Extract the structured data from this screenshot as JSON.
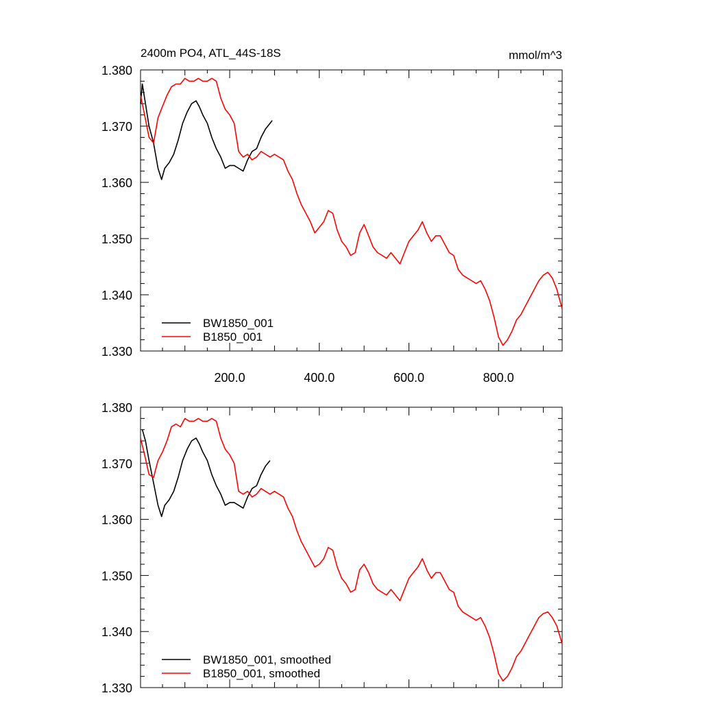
{
  "figure": {
    "title": "2400m PO4, ATL_44S-18S",
    "units": "mmol/m^3"
  },
  "chart_data": [
    {
      "type": "line",
      "title": "2400m PO4, ATL_44S-18S",
      "units_label": "mmol/m^3",
      "xlabel": "",
      "ylabel": "",
      "xlim": [
        1,
        942
      ],
      "ylim": [
        1.33,
        1.38
      ],
      "x_ticks": [
        200,
        400,
        600,
        800
      ],
      "x_tick_labels": [
        "200.0",
        "400.0",
        "600.0",
        "800.0"
      ],
      "y_ticks": [
        1.33,
        1.34,
        1.35,
        1.36,
        1.37,
        1.38
      ],
      "y_tick_labels": [
        "1.330",
        "1.340",
        "1.350",
        "1.360",
        "1.370",
        "1.380"
      ],
      "grid": false,
      "legend": "bottom-left",
      "series": [
        {
          "name": "BW1850_001",
          "color": "#000000",
          "x": [
            1,
            5,
            12,
            20,
            30,
            40,
            48,
            55,
            65,
            75,
            85,
            95,
            105,
            115,
            125,
            132,
            140,
            150,
            160,
            170,
            180,
            190,
            200,
            210,
            220,
            230,
            240,
            250,
            260,
            270,
            280,
            290,
            295
          ],
          "y": [
            1.374,
            1.3775,
            1.374,
            1.37,
            1.367,
            1.3625,
            1.3605,
            1.3625,
            1.3635,
            1.365,
            1.3675,
            1.3705,
            1.3725,
            1.374,
            1.3745,
            1.3735,
            1.372,
            1.3705,
            1.368,
            1.366,
            1.3645,
            1.3625,
            1.363,
            1.363,
            1.3625,
            1.362,
            1.364,
            1.3655,
            1.366,
            1.368,
            1.3695,
            1.3705,
            1.371
          ]
        },
        {
          "name": "B1850_001",
          "color": "#ff0000",
          "x": [
            1,
            10,
            20,
            30,
            40,
            50,
            60,
            70,
            80,
            90,
            100,
            110,
            120,
            130,
            140,
            150,
            160,
            170,
            180,
            190,
            200,
            210,
            220,
            230,
            240,
            250,
            260,
            270,
            280,
            290,
            300,
            310,
            320,
            330,
            340,
            350,
            360,
            370,
            380,
            390,
            400,
            410,
            420,
            430,
            440,
            450,
            460,
            470,
            480,
            490,
            500,
            510,
            520,
            530,
            540,
            550,
            560,
            570,
            580,
            590,
            600,
            610,
            620,
            630,
            640,
            650,
            660,
            670,
            680,
            690,
            700,
            710,
            720,
            730,
            740,
            750,
            760,
            770,
            780,
            790,
            800,
            810,
            820,
            830,
            840,
            850,
            860,
            870,
            880,
            890,
            900,
            910,
            920,
            930,
            942
          ],
          "y": [
            1.3755,
            1.372,
            1.368,
            1.367,
            1.3715,
            1.3735,
            1.3755,
            1.377,
            1.3775,
            1.3775,
            1.3785,
            1.378,
            1.378,
            1.3785,
            1.378,
            1.378,
            1.3785,
            1.378,
            1.375,
            1.373,
            1.372,
            1.3705,
            1.3655,
            1.3645,
            1.365,
            1.364,
            1.3645,
            1.3655,
            1.365,
            1.3645,
            1.365,
            1.3645,
            1.364,
            1.362,
            1.3605,
            1.358,
            1.356,
            1.3545,
            1.353,
            1.351,
            1.352,
            1.353,
            1.355,
            1.3545,
            1.3515,
            1.3495,
            1.3485,
            1.347,
            1.3475,
            1.351,
            1.3525,
            1.3505,
            1.3485,
            1.3475,
            1.347,
            1.3465,
            1.3475,
            1.3465,
            1.3455,
            1.3475,
            1.3495,
            1.3505,
            1.3515,
            1.353,
            1.351,
            1.3495,
            1.3505,
            1.3505,
            1.349,
            1.3475,
            1.347,
            1.3445,
            1.3435,
            1.343,
            1.3425,
            1.342,
            1.3425,
            1.341,
            1.339,
            1.336,
            1.3325,
            1.331,
            1.332,
            1.3335,
            1.3355,
            1.3365,
            1.338,
            1.3395,
            1.341,
            1.3425,
            1.3435,
            1.344,
            1.343,
            1.341,
            1.3375
          ]
        }
      ]
    },
    {
      "type": "line",
      "title": "",
      "xlabel": "",
      "ylabel": "",
      "xlim": [
        1,
        942
      ],
      "ylim": [
        1.33,
        1.38
      ],
      "x_ticks": [
        200,
        400,
        600,
        800
      ],
      "y_ticks": [
        1.33,
        1.34,
        1.35,
        1.36,
        1.37,
        1.38
      ],
      "y_tick_labels": [
        "1.330",
        "1.340",
        "1.350",
        "1.360",
        "1.370",
        "1.380"
      ],
      "grid": false,
      "legend": "bottom-left",
      "series": [
        {
          "name": "BW1850_001, smoothed",
          "color": "#000000",
          "x": [
            5,
            12,
            20,
            30,
            40,
            48,
            55,
            65,
            75,
            85,
            95,
            105,
            115,
            125,
            132,
            140,
            150,
            160,
            170,
            180,
            190,
            200,
            210,
            220,
            230,
            240,
            250,
            260,
            270,
            280,
            290
          ],
          "y": [
            1.376,
            1.374,
            1.3705,
            1.3665,
            1.3625,
            1.3605,
            1.3625,
            1.3635,
            1.365,
            1.3675,
            1.3705,
            1.3725,
            1.374,
            1.3745,
            1.3735,
            1.372,
            1.3705,
            1.368,
            1.366,
            1.3645,
            1.3625,
            1.363,
            1.363,
            1.3625,
            1.362,
            1.364,
            1.3655,
            1.366,
            1.368,
            1.3695,
            1.3705
          ]
        },
        {
          "name": "B1850_001, smoothed",
          "color": "#ff0000",
          "x": [
            1,
            10,
            20,
            30,
            40,
            50,
            60,
            70,
            80,
            90,
            100,
            110,
            120,
            130,
            140,
            150,
            160,
            170,
            180,
            190,
            200,
            210,
            220,
            230,
            240,
            250,
            260,
            270,
            280,
            290,
            300,
            310,
            320,
            330,
            340,
            350,
            360,
            370,
            380,
            390,
            400,
            410,
            420,
            430,
            440,
            450,
            460,
            470,
            480,
            490,
            500,
            510,
            520,
            530,
            540,
            550,
            560,
            570,
            580,
            590,
            600,
            610,
            620,
            630,
            640,
            650,
            660,
            670,
            680,
            690,
            700,
            710,
            720,
            730,
            740,
            750,
            760,
            770,
            780,
            790,
            800,
            810,
            820,
            830,
            840,
            850,
            860,
            870,
            880,
            890,
            900,
            910,
            920,
            930,
            942
          ],
          "y": [
            1.3745,
            1.3715,
            1.368,
            1.3675,
            1.3705,
            1.372,
            1.374,
            1.3765,
            1.377,
            1.3765,
            1.378,
            1.3775,
            1.3775,
            1.378,
            1.3775,
            1.3775,
            1.378,
            1.3775,
            1.3745,
            1.3725,
            1.3715,
            1.37,
            1.365,
            1.3645,
            1.365,
            1.364,
            1.3645,
            1.3655,
            1.365,
            1.3645,
            1.365,
            1.3645,
            1.364,
            1.362,
            1.3605,
            1.358,
            1.356,
            1.3545,
            1.353,
            1.3515,
            1.352,
            1.353,
            1.355,
            1.3545,
            1.3515,
            1.3495,
            1.3485,
            1.347,
            1.3475,
            1.351,
            1.352,
            1.3505,
            1.3485,
            1.3475,
            1.347,
            1.3465,
            1.3475,
            1.3465,
            1.3455,
            1.3475,
            1.3495,
            1.3505,
            1.3515,
            1.353,
            1.351,
            1.3495,
            1.3505,
            1.3505,
            1.349,
            1.3475,
            1.347,
            1.3445,
            1.3435,
            1.343,
            1.3425,
            1.342,
            1.3425,
            1.341,
            1.339,
            1.336,
            1.3325,
            1.3312,
            1.332,
            1.3335,
            1.3355,
            1.3365,
            1.338,
            1.3395,
            1.341,
            1.3425,
            1.3432,
            1.3435,
            1.3425,
            1.341,
            1.3378
          ]
        }
      ]
    }
  ]
}
